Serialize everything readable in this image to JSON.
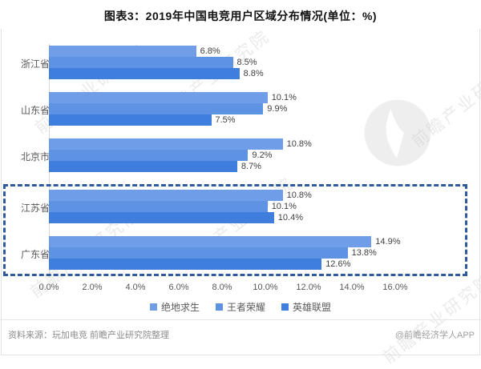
{
  "title": "图表3：2019年中国电竞用户区域分布情况(单位：%)",
  "watermark": {
    "text": "前瞻产业研究院",
    "logo": "qianzhan-swoosh-logo"
  },
  "chart_data": {
    "type": "bar",
    "orientation": "horizontal",
    "unit": "%",
    "title": "图表3：2019年中国电竞用户区域分布情况(单位：%)",
    "categories": [
      "浙江省",
      "山东省",
      "北京市",
      "江苏省",
      "广东省"
    ],
    "series": [
      {
        "name": "绝地求生",
        "color": "#6f9de8",
        "values": [
          6.8,
          10.1,
          10.8,
          10.8,
          14.9
        ]
      },
      {
        "name": "王者荣耀",
        "color": "#5e92e3",
        "values": [
          8.5,
          9.9,
          9.2,
          10.1,
          13.8
        ]
      },
      {
        "name": "英雄联盟",
        "color": "#3f7edd",
        "values": [
          8.8,
          7.5,
          8.7,
          10.4,
          12.6
        ]
      }
    ],
    "x_axis": {
      "min": 0,
      "max": 16,
      "tick_labels": [
        "0.0%",
        "2.0%",
        "4.0%",
        "6.0%",
        "8.0%",
        "10.0%",
        "12.0%",
        "14.0%",
        "16.0%"
      ]
    },
    "data_label_suffix": "%",
    "grid": "off",
    "legend_position": "bottom",
    "highlight": {
      "categories": [
        "江苏省",
        "广东省"
      ],
      "style": "dashed-box",
      "color": "#2f5b9e"
    }
  },
  "footer": {
    "source": "资料来源：玩加电竞 前瞻产业研究院整理",
    "credit": "@前瞻经济学人APP"
  }
}
